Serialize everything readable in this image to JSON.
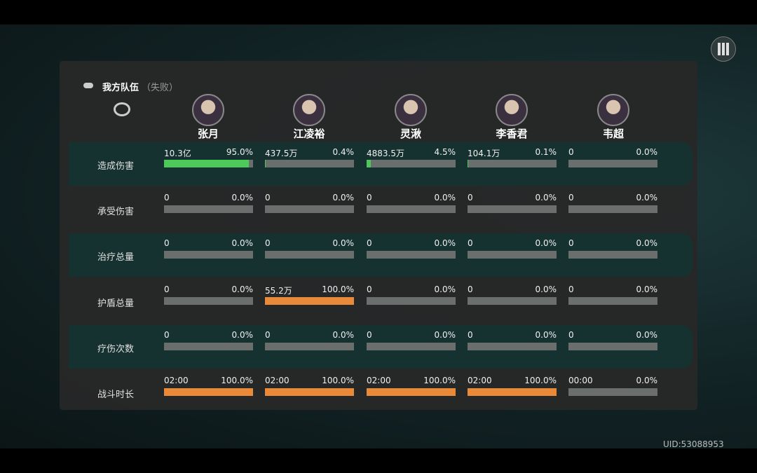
{
  "header": {
    "title": "我方队伍",
    "status": "（失败）"
  },
  "characters": [
    "张月",
    "江凌裕",
    "灵湫",
    "李香君",
    "韦超"
  ],
  "rows": [
    {
      "label": "造成伤害",
      "color": "#4fc85a",
      "cells": [
        {
          "value": "10.3亿",
          "percent": 95.0,
          "percent_label": "95.0%"
        },
        {
          "value": "437.5万",
          "percent": 0.4,
          "percent_label": "0.4%"
        },
        {
          "value": "4883.5万",
          "percent": 4.5,
          "percent_label": "4.5%"
        },
        {
          "value": "104.1万",
          "percent": 0.1,
          "percent_label": "0.1%"
        },
        {
          "value": "0",
          "percent": 0.0,
          "percent_label": "0.0%"
        }
      ]
    },
    {
      "label": "承受伤害",
      "color": "#e88a3a",
      "cells": [
        {
          "value": "0",
          "percent": 0.0,
          "percent_label": "0.0%"
        },
        {
          "value": "0",
          "percent": 0.0,
          "percent_label": "0.0%"
        },
        {
          "value": "0",
          "percent": 0.0,
          "percent_label": "0.0%"
        },
        {
          "value": "0",
          "percent": 0.0,
          "percent_label": "0.0%"
        },
        {
          "value": "0",
          "percent": 0.0,
          "percent_label": "0.0%"
        }
      ]
    },
    {
      "label": "治疗总量",
      "color": "#4fc85a",
      "cells": [
        {
          "value": "0",
          "percent": 0.0,
          "percent_label": "0.0%"
        },
        {
          "value": "0",
          "percent": 0.0,
          "percent_label": "0.0%"
        },
        {
          "value": "0",
          "percent": 0.0,
          "percent_label": "0.0%"
        },
        {
          "value": "0",
          "percent": 0.0,
          "percent_label": "0.0%"
        },
        {
          "value": "0",
          "percent": 0.0,
          "percent_label": "0.0%"
        }
      ]
    },
    {
      "label": "护盾总量",
      "color": "#e88a3a",
      "cells": [
        {
          "value": "0",
          "percent": 0.0,
          "percent_label": "0.0%"
        },
        {
          "value": "55.2万",
          "percent": 100.0,
          "percent_label": "100.0%"
        },
        {
          "value": "0",
          "percent": 0.0,
          "percent_label": "0.0%"
        },
        {
          "value": "0",
          "percent": 0.0,
          "percent_label": "0.0%"
        },
        {
          "value": "0",
          "percent": 0.0,
          "percent_label": "0.0%"
        }
      ]
    },
    {
      "label": "疗伤次数",
      "color": "#e88a3a",
      "cells": [
        {
          "value": "0",
          "percent": 0.0,
          "percent_label": "0.0%"
        },
        {
          "value": "0",
          "percent": 0.0,
          "percent_label": "0.0%"
        },
        {
          "value": "0",
          "percent": 0.0,
          "percent_label": "0.0%"
        },
        {
          "value": "0",
          "percent": 0.0,
          "percent_label": "0.0%"
        },
        {
          "value": "0",
          "percent": 0.0,
          "percent_label": "0.0%"
        }
      ]
    },
    {
      "label": "战斗时长",
      "color": "#e88a3a",
      "cells": [
        {
          "value": "02:00",
          "percent": 100.0,
          "percent_label": "100.0%"
        },
        {
          "value": "02:00",
          "percent": 100.0,
          "percent_label": "100.0%"
        },
        {
          "value": "02:00",
          "percent": 100.0,
          "percent_label": "100.0%"
        },
        {
          "value": "02:00",
          "percent": 100.0,
          "percent_label": "100.0%"
        },
        {
          "value": "00:00",
          "percent": 0.0,
          "percent_label": "0.0%"
        }
      ]
    }
  ],
  "uid": "UID:53088953"
}
